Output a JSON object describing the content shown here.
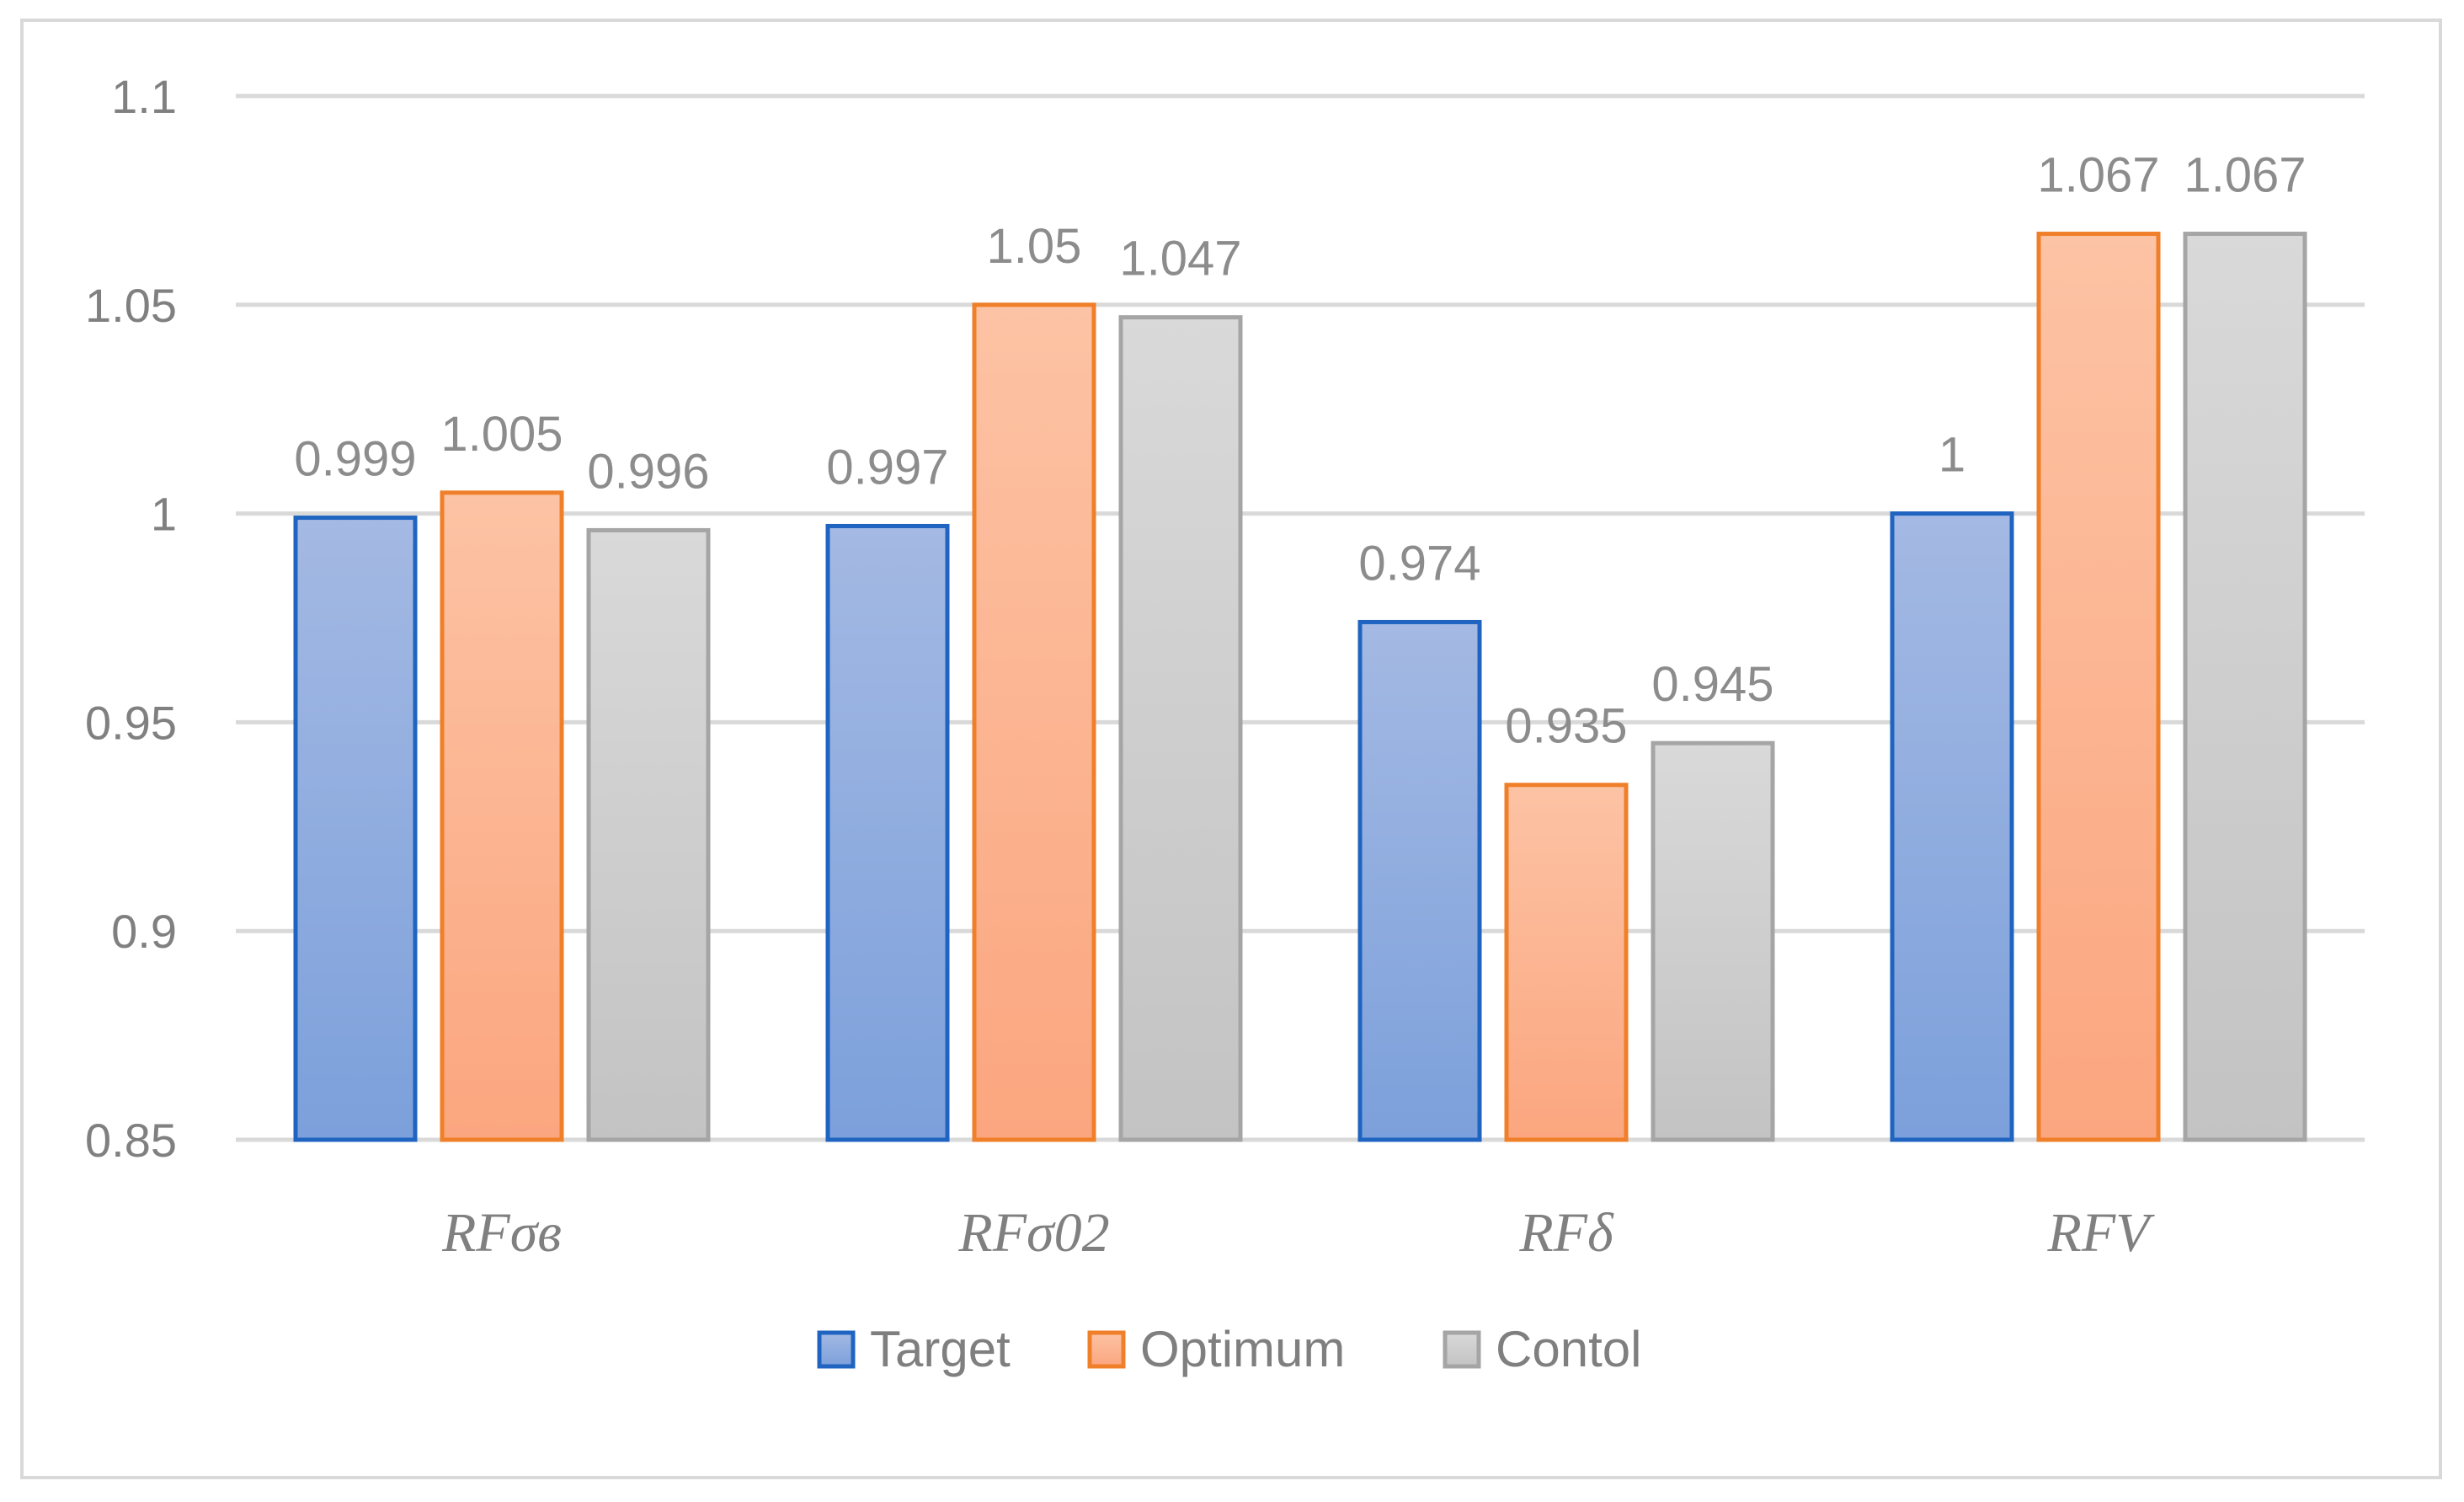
{
  "chart_data": {
    "type": "bar",
    "categories": [
      "RFσв",
      "RFσ02",
      "RFδ",
      "RFV"
    ],
    "series": [
      {
        "name": "Target",
        "values": [
          0.999,
          0.997,
          0.974,
          1
        ],
        "labels": [
          "0.999",
          "0.997",
          "0.974",
          "1"
        ],
        "color": "#1f64c0",
        "fill_top": "#a4b9e3",
        "fill_bottom": "#7ca0db"
      },
      {
        "name": "Optimum",
        "values": [
          1.005,
          1.05,
          0.935,
          1.067
        ],
        "labels": [
          "1.005",
          "1.05",
          "0.935",
          "1.067"
        ],
        "color": "#f07f2a",
        "fill_top": "#fcc3a4",
        "fill_bottom": "#fba67f"
      },
      {
        "name": "Contol",
        "values": [
          0.996,
          1.047,
          0.945,
          1.067
        ],
        "labels": [
          "0.996",
          "1.047",
          "0.945",
          "1.067"
        ],
        "color": "#a5a5a5",
        "fill_top": "#d9d9d9",
        "fill_bottom": "#c3c3c3"
      }
    ],
    "ylim": [
      0.85,
      1.1
    ],
    "yticks": [
      "0.85",
      "0.9",
      "0.95",
      "1",
      "1.05",
      "1.1"
    ],
    "ytick_values": [
      0.85,
      0.9,
      0.95,
      1,
      1.05,
      1.1
    ],
    "title": "",
    "xlabel": "",
    "ylabel": "",
    "grid": true,
    "legend_position": "bottom",
    "data_labels": true
  }
}
